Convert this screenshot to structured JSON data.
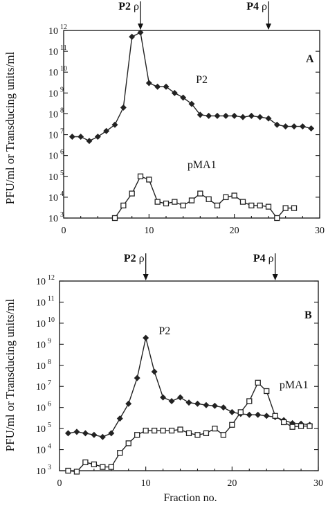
{
  "ylabel": "PFU/ml or Transducing units/ml",
  "xlabel": "Fraction no.",
  "chart_data": [
    {
      "panel": "A",
      "type": "line",
      "xlim": [
        0,
        30
      ],
      "x_ticks": [
        "0",
        "10",
        "20",
        "30"
      ],
      "y_scale": "log",
      "ylim": [
        1000,
        1000000000000
      ],
      "y_ticks": [
        {
          "base": "10",
          "exp": "12"
        },
        {
          "base": "10",
          "exp": "11"
        },
        {
          "base": "10",
          "exp": "10"
        },
        {
          "base": "10",
          "exp": "9"
        },
        {
          "base": "10",
          "exp": "8"
        },
        {
          "base": "10",
          "exp": "7"
        },
        {
          "base": "10",
          "exp": "6"
        },
        {
          "base": "10",
          "exp": "5"
        },
        {
          "base": "10",
          "exp": "4"
        },
        {
          "base": "10",
          "exp": "3"
        }
      ],
      "markers": [
        {
          "label": "P2 ρ",
          "x": 9
        },
        {
          "label": "P4 ρ",
          "x": 24
        }
      ],
      "series": [
        {
          "name": "P2",
          "marker": "diamond",
          "x": [
            1,
            2,
            3,
            4,
            5,
            6,
            7,
            8,
            9,
            10,
            11,
            12,
            13,
            14,
            15,
            16,
            17,
            18,
            19,
            20,
            21,
            22,
            23,
            24,
            25,
            26,
            27,
            28,
            29
          ],
          "y": [
            8000000,
            8000000,
            5000000,
            8000000,
            15000000,
            30000000,
            200000000,
            500000000000,
            800000000000,
            3000000000,
            2000000000,
            2000000000,
            1000000000,
            600000000,
            300000000,
            90000000,
            80000000,
            80000000,
            80000000,
            80000000,
            70000000,
            80000000,
            70000000,
            60000000,
            30000000,
            25000000,
            25000000,
            25000000,
            20000000
          ]
        },
        {
          "name": "pMA1",
          "marker": "square",
          "x": [
            6,
            7,
            8,
            9,
            10,
            11,
            12,
            13,
            14,
            15,
            16,
            17,
            18,
            19,
            20,
            21,
            22,
            23,
            24,
            25,
            26,
            27
          ],
          "y": [
            1000,
            4000,
            15000,
            100000,
            70000,
            6000,
            5000,
            6000,
            4000,
            7000,
            15000,
            8000,
            4000,
            10000,
            12000,
            6000,
            4000,
            4000,
            3500,
            1000,
            3000,
            3000
          ]
        }
      ]
    },
    {
      "panel": "B",
      "type": "line",
      "xlim": [
        0,
        30
      ],
      "x_ticks": [
        "0",
        "10",
        "20",
        "30"
      ],
      "y_scale": "log",
      "ylim": [
        1000,
        1000000000000
      ],
      "y_ticks": [
        {
          "base": "10",
          "exp": "12"
        },
        {
          "base": "10",
          "exp": "11"
        },
        {
          "base": "10",
          "exp": "10"
        },
        {
          "base": "10",
          "exp": "9"
        },
        {
          "base": "10",
          "exp": "8"
        },
        {
          "base": "10",
          "exp": "7"
        },
        {
          "base": "10",
          "exp": "6"
        },
        {
          "base": "10",
          "exp": "5"
        },
        {
          "base": "10",
          "exp": "4"
        },
        {
          "base": "10",
          "exp": "3"
        }
      ],
      "markers": [
        {
          "label": "P2 ρ",
          "x": 10
        },
        {
          "label": "P4 ρ",
          "x": 25
        }
      ],
      "series": [
        {
          "name": "P2",
          "marker": "diamond",
          "x": [
            1,
            2,
            3,
            4,
            5,
            6,
            7,
            8,
            9,
            10,
            11,
            12,
            13,
            14,
            15,
            16,
            17,
            18,
            19,
            20,
            21,
            22,
            23,
            24,
            25,
            26,
            27,
            28,
            29
          ],
          "y": [
            60000,
            70000,
            60000,
            50000,
            40000,
            60000,
            300000,
            1500000,
            25000000,
            2000000000,
            50000000,
            3000000,
            2000000,
            3000000,
            1700000,
            1500000,
            1300000,
            1200000,
            1000000,
            600000,
            500000,
            450000,
            450000,
            400000,
            350000,
            250000,
            180000,
            170000,
            150000
          ]
        },
        {
          "name": "pMA1",
          "marker": "square",
          "x": [
            1,
            2,
            3,
            4,
            5,
            6,
            7,
            8,
            9,
            10,
            11,
            12,
            13,
            14,
            15,
            16,
            17,
            18,
            19,
            20,
            21,
            22,
            23,
            24,
            25,
            26,
            27,
            28,
            29
          ],
          "y": [
            1000,
            900,
            2500,
            2000,
            1500,
            1500,
            7000,
            20000,
            50000,
            80000,
            80000,
            80000,
            80000,
            90000,
            60000,
            50000,
            60000,
            100000,
            50000,
            150000,
            600000,
            2000000,
            15000000,
            6000000,
            400000,
            200000,
            120000,
            130000,
            130000
          ]
        }
      ]
    }
  ]
}
